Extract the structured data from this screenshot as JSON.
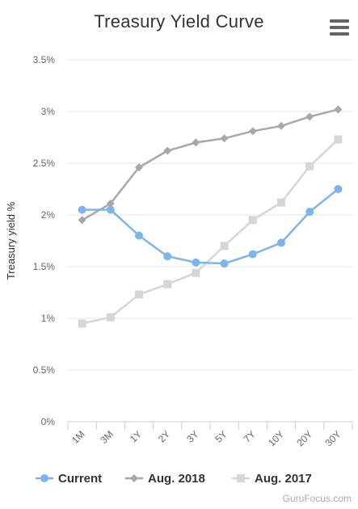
{
  "chart_data": {
    "type": "line",
    "title": "Treasury Yield Curve",
    "ylabel": "Treasury yield %",
    "xlabel": "",
    "categories": [
      "1M",
      "3M",
      "1Y",
      "2Y",
      "3Y",
      "5Y",
      "7Y",
      "10Y",
      "20Y",
      "30Y"
    ],
    "ylim": [
      0,
      3.5
    ],
    "yticks": [
      "0%",
      "0.5%",
      "1%",
      "1.5%",
      "2%",
      "2.5%",
      "3%",
      "3.5%"
    ],
    "grid": true,
    "legend_position": "bottom",
    "series": [
      {
        "name": "Current",
        "color": "#7cb5ec",
        "marker": "circle",
        "values": [
          2.05,
          2.05,
          1.8,
          1.6,
          1.54,
          1.53,
          1.62,
          1.73,
          2.03,
          2.25
        ]
      },
      {
        "name": "Aug. 2018",
        "color": "#a8a8a8",
        "marker": "diamond",
        "values": [
          1.95,
          2.11,
          2.46,
          2.62,
          2.7,
          2.74,
          2.81,
          2.86,
          2.95,
          3.02
        ]
      },
      {
        "name": "Aug. 2017",
        "color": "#d6d6d6",
        "marker": "square",
        "values": [
          0.95,
          1.01,
          1.23,
          1.33,
          1.44,
          1.7,
          1.95,
          2.12,
          2.47,
          2.73
        ]
      }
    ]
  },
  "menu_icon": "hamburger-menu-icon",
  "watermark": "GuruFocus.com"
}
